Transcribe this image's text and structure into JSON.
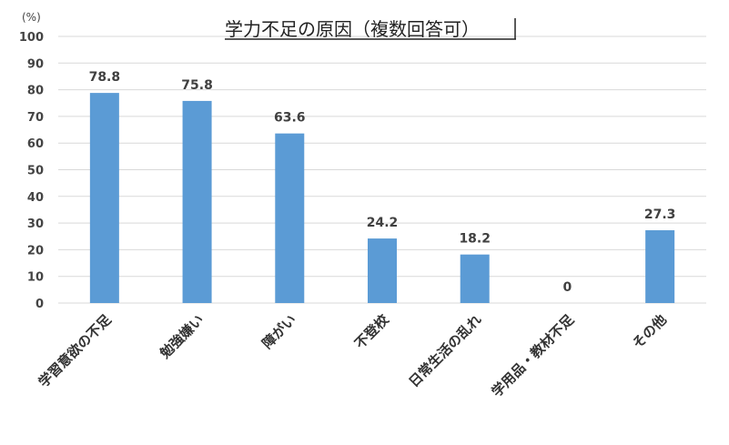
{
  "chart_data": {
    "type": "bar",
    "title": "学力不足の原因（複数回答可）",
    "unit_label": "(%)",
    "categories": [
      "学習意欲の不足",
      "勉強嫌い",
      "障がい",
      "不登校",
      "日常生活の乱れ",
      "学用品・教材不足",
      "その他"
    ],
    "values": [
      78.8,
      75.8,
      63.6,
      24.2,
      18.2,
      0,
      27.3
    ],
    "data_labels": [
      "78.8",
      "75.8",
      "63.6",
      "24.2",
      "18.2",
      "0",
      "27.3"
    ],
    "ylim": [
      0,
      100
    ],
    "yticks": [
      "0",
      "10",
      "20",
      "30",
      "40",
      "50",
      "60",
      "70",
      "80",
      "90",
      "100"
    ],
    "xlabel": "",
    "ylabel": "",
    "grid": true,
    "legend": "none",
    "bar_color": "#5b9bd5",
    "grid_color": "#d9d9d9"
  }
}
